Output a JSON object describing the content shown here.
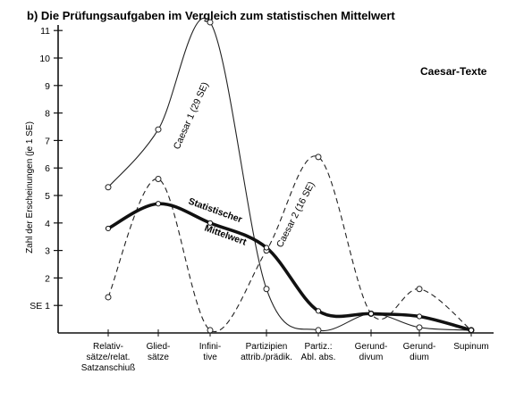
{
  "chart_data": {
    "type": "line",
    "title": "b) Die Prüfungsaufgaben im Vergleich zum statistischen Mittelwert",
    "corner_label": "Caesar-Texte",
    "ylabel": "Zahl der Erscheinungen (je 1 SE)",
    "ylim": [
      0,
      11.5
    ],
    "yticks": [
      {
        "value": 1,
        "label": "SE 1"
      },
      {
        "value": 2,
        "label": "2"
      },
      {
        "value": 3,
        "label": "3"
      },
      {
        "value": 4,
        "label": "4"
      },
      {
        "value": 5,
        "label": "5"
      },
      {
        "value": 6,
        "label": "6"
      },
      {
        "value": 7,
        "label": "7"
      },
      {
        "value": 8,
        "label": "8"
      },
      {
        "value": 9,
        "label": "9"
      },
      {
        "value": 10,
        "label": "10"
      },
      {
        "value": 11,
        "label": "11"
      }
    ],
    "categories": [
      [
        "Relativ-",
        "sätze/relat.",
        "Satzanschiuß"
      ],
      [
        "Glied-",
        "sätze"
      ],
      [
        "Infini-",
        "tive"
      ],
      [
        "Partizipien",
        "attrib./prädik."
      ],
      [
        "Partiz.:",
        "Abl. abs."
      ],
      [
        "Gerund-",
        "divum"
      ],
      [
        "Gerund-",
        "dium"
      ],
      [
        "Supinum"
      ]
    ],
    "series": [
      {
        "name": "Caesar 1 (29 SE)",
        "style": "solid-thin",
        "values": [
          5.3,
          7.4,
          11.3,
          1.6,
          0.1,
          0.7,
          0.2,
          0.1
        ]
      },
      {
        "name": "Caesar 2 (16 SE)",
        "style": "dashed",
        "values": [
          1.3,
          5.6,
          0.1,
          3.0,
          6.4,
          0.7,
          1.6,
          0.1
        ]
      },
      {
        "name": "Statistischer Mittelwert",
        "style": "solid-thick",
        "values": [
          3.8,
          4.7,
          4.0,
          3.1,
          0.8,
          0.7,
          0.6,
          0.1
        ]
      }
    ],
    "annotations": [
      {
        "text": "Caesar 1 (29 SE)",
        "series": 0
      },
      {
        "text": "Caesar 2 (16 SE)",
        "series": 1
      },
      {
        "text": "Statistischer",
        "series": 2
      },
      {
        "text": "Mittelwert",
        "series": 2
      }
    ]
  }
}
